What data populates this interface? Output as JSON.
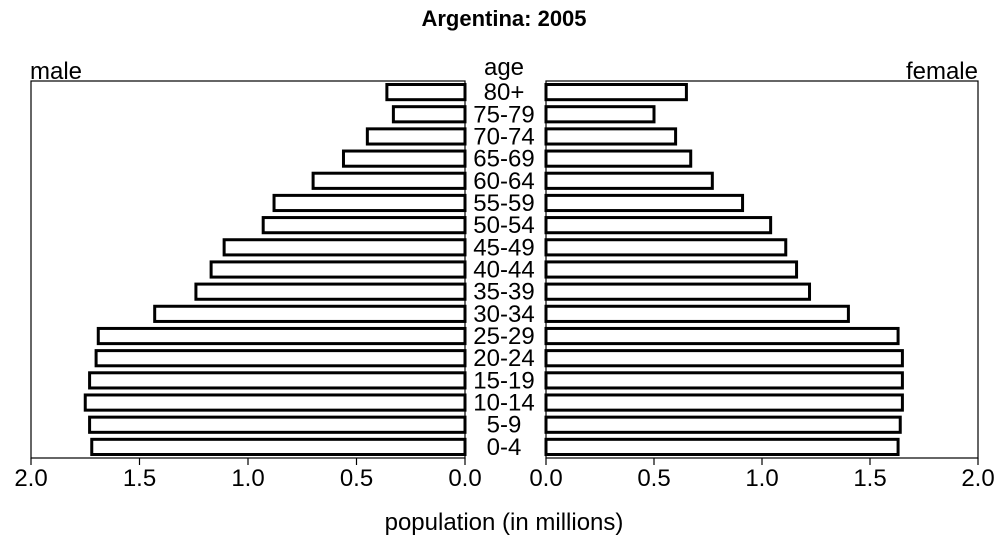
{
  "chart_data": {
    "type": "bar",
    "title": "Argentina: 2005",
    "left_label": "male",
    "right_label": "female",
    "center_label": "age",
    "xlabel": "population (in millions)",
    "xlim": [
      0,
      2.0
    ],
    "x_ticks": [
      "0.0",
      "0.5",
      "1.0",
      "1.5",
      "2.0"
    ],
    "categories": [
      "0-4",
      "5-9",
      "10-14",
      "15-19",
      "20-24",
      "25-29",
      "30-34",
      "35-39",
      "40-44",
      "45-49",
      "50-54",
      "55-59",
      "60-64",
      "65-69",
      "70-74",
      "75-79",
      "80+"
    ],
    "series": [
      {
        "name": "male",
        "values": [
          1.72,
          1.73,
          1.75,
          1.73,
          1.7,
          1.69,
          1.43,
          1.24,
          1.17,
          1.11,
          0.93,
          0.88,
          0.7,
          0.56,
          0.45,
          0.33,
          0.36
        ]
      },
      {
        "name": "female",
        "values": [
          1.63,
          1.64,
          1.65,
          1.65,
          1.65,
          1.63,
          1.4,
          1.22,
          1.16,
          1.11,
          1.04,
          0.91,
          0.77,
          0.67,
          0.6,
          0.5,
          0.65
        ]
      }
    ],
    "grid": false,
    "bar_fill": "#ffffff",
    "bar_stroke": "#000000"
  }
}
